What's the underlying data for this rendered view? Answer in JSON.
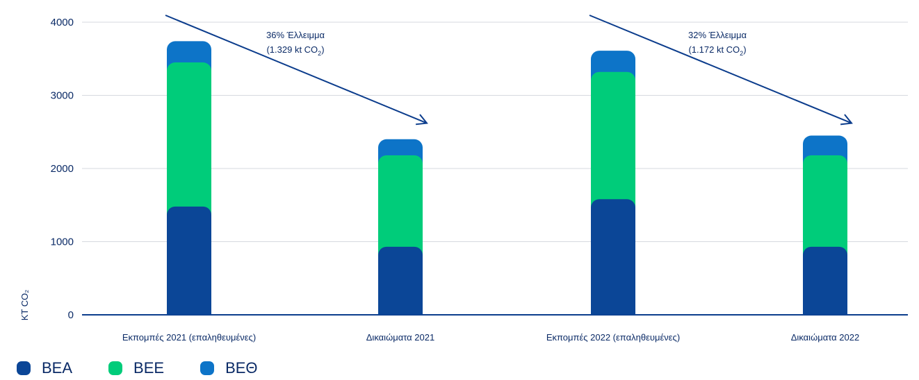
{
  "chart_data": {
    "type": "bar",
    "stacked": true,
    "categories": [
      "Εκπομπές 2021 (επαληθευμένες)",
      "Δικαιώματα 2021",
      "Εκπομπές 2022 (επαληθευμένες)",
      "Δικαιώματα 2022"
    ],
    "series": [
      {
        "name": "ΒΕΑ",
        "color": "#0b4697",
        "values": [
          1480,
          930,
          1580,
          930
        ]
      },
      {
        "name": "ΒΕΕ",
        "color": "#00cc7a",
        "values": [
          1970,
          1250,
          1740,
          1250
        ]
      },
      {
        "name": "ΒΕΘ",
        "color": "#0d74c8",
        "values": [
          290,
          220,
          290,
          270
        ]
      }
    ],
    "ylabel": "KT CO₂",
    "ylim": [
      0,
      4000
    ],
    "yticks": [
      0,
      1000,
      2000,
      3000,
      4000
    ],
    "grid": true,
    "legend_position": "bottom-left",
    "annotations": [
      {
        "line1": "36% Έλλειμμα",
        "line2_prefix": "(1.329 kt CO",
        "line2_sub": "2",
        "line2_suffix": ")"
      },
      {
        "line1": "32% Έλλειμμα",
        "line2_prefix": "(1.172 kt CO",
        "line2_sub": "2",
        "line2_suffix": ")"
      }
    ],
    "arrows": [
      {
        "from_category": 0,
        "from_value": 4000,
        "to_category": 1,
        "to_value": 2620
      },
      {
        "from_category": 2,
        "from_value": 4000,
        "to_category": 3,
        "to_value": 2620
      }
    ]
  },
  "legend": {
    "items": [
      {
        "label": "ΒΕΑ",
        "color": "#0b4697"
      },
      {
        "label": "ΒΕΕ",
        "color": "#00cc7a"
      },
      {
        "label": "ΒΕΘ",
        "color": "#0d74c8"
      }
    ]
  }
}
